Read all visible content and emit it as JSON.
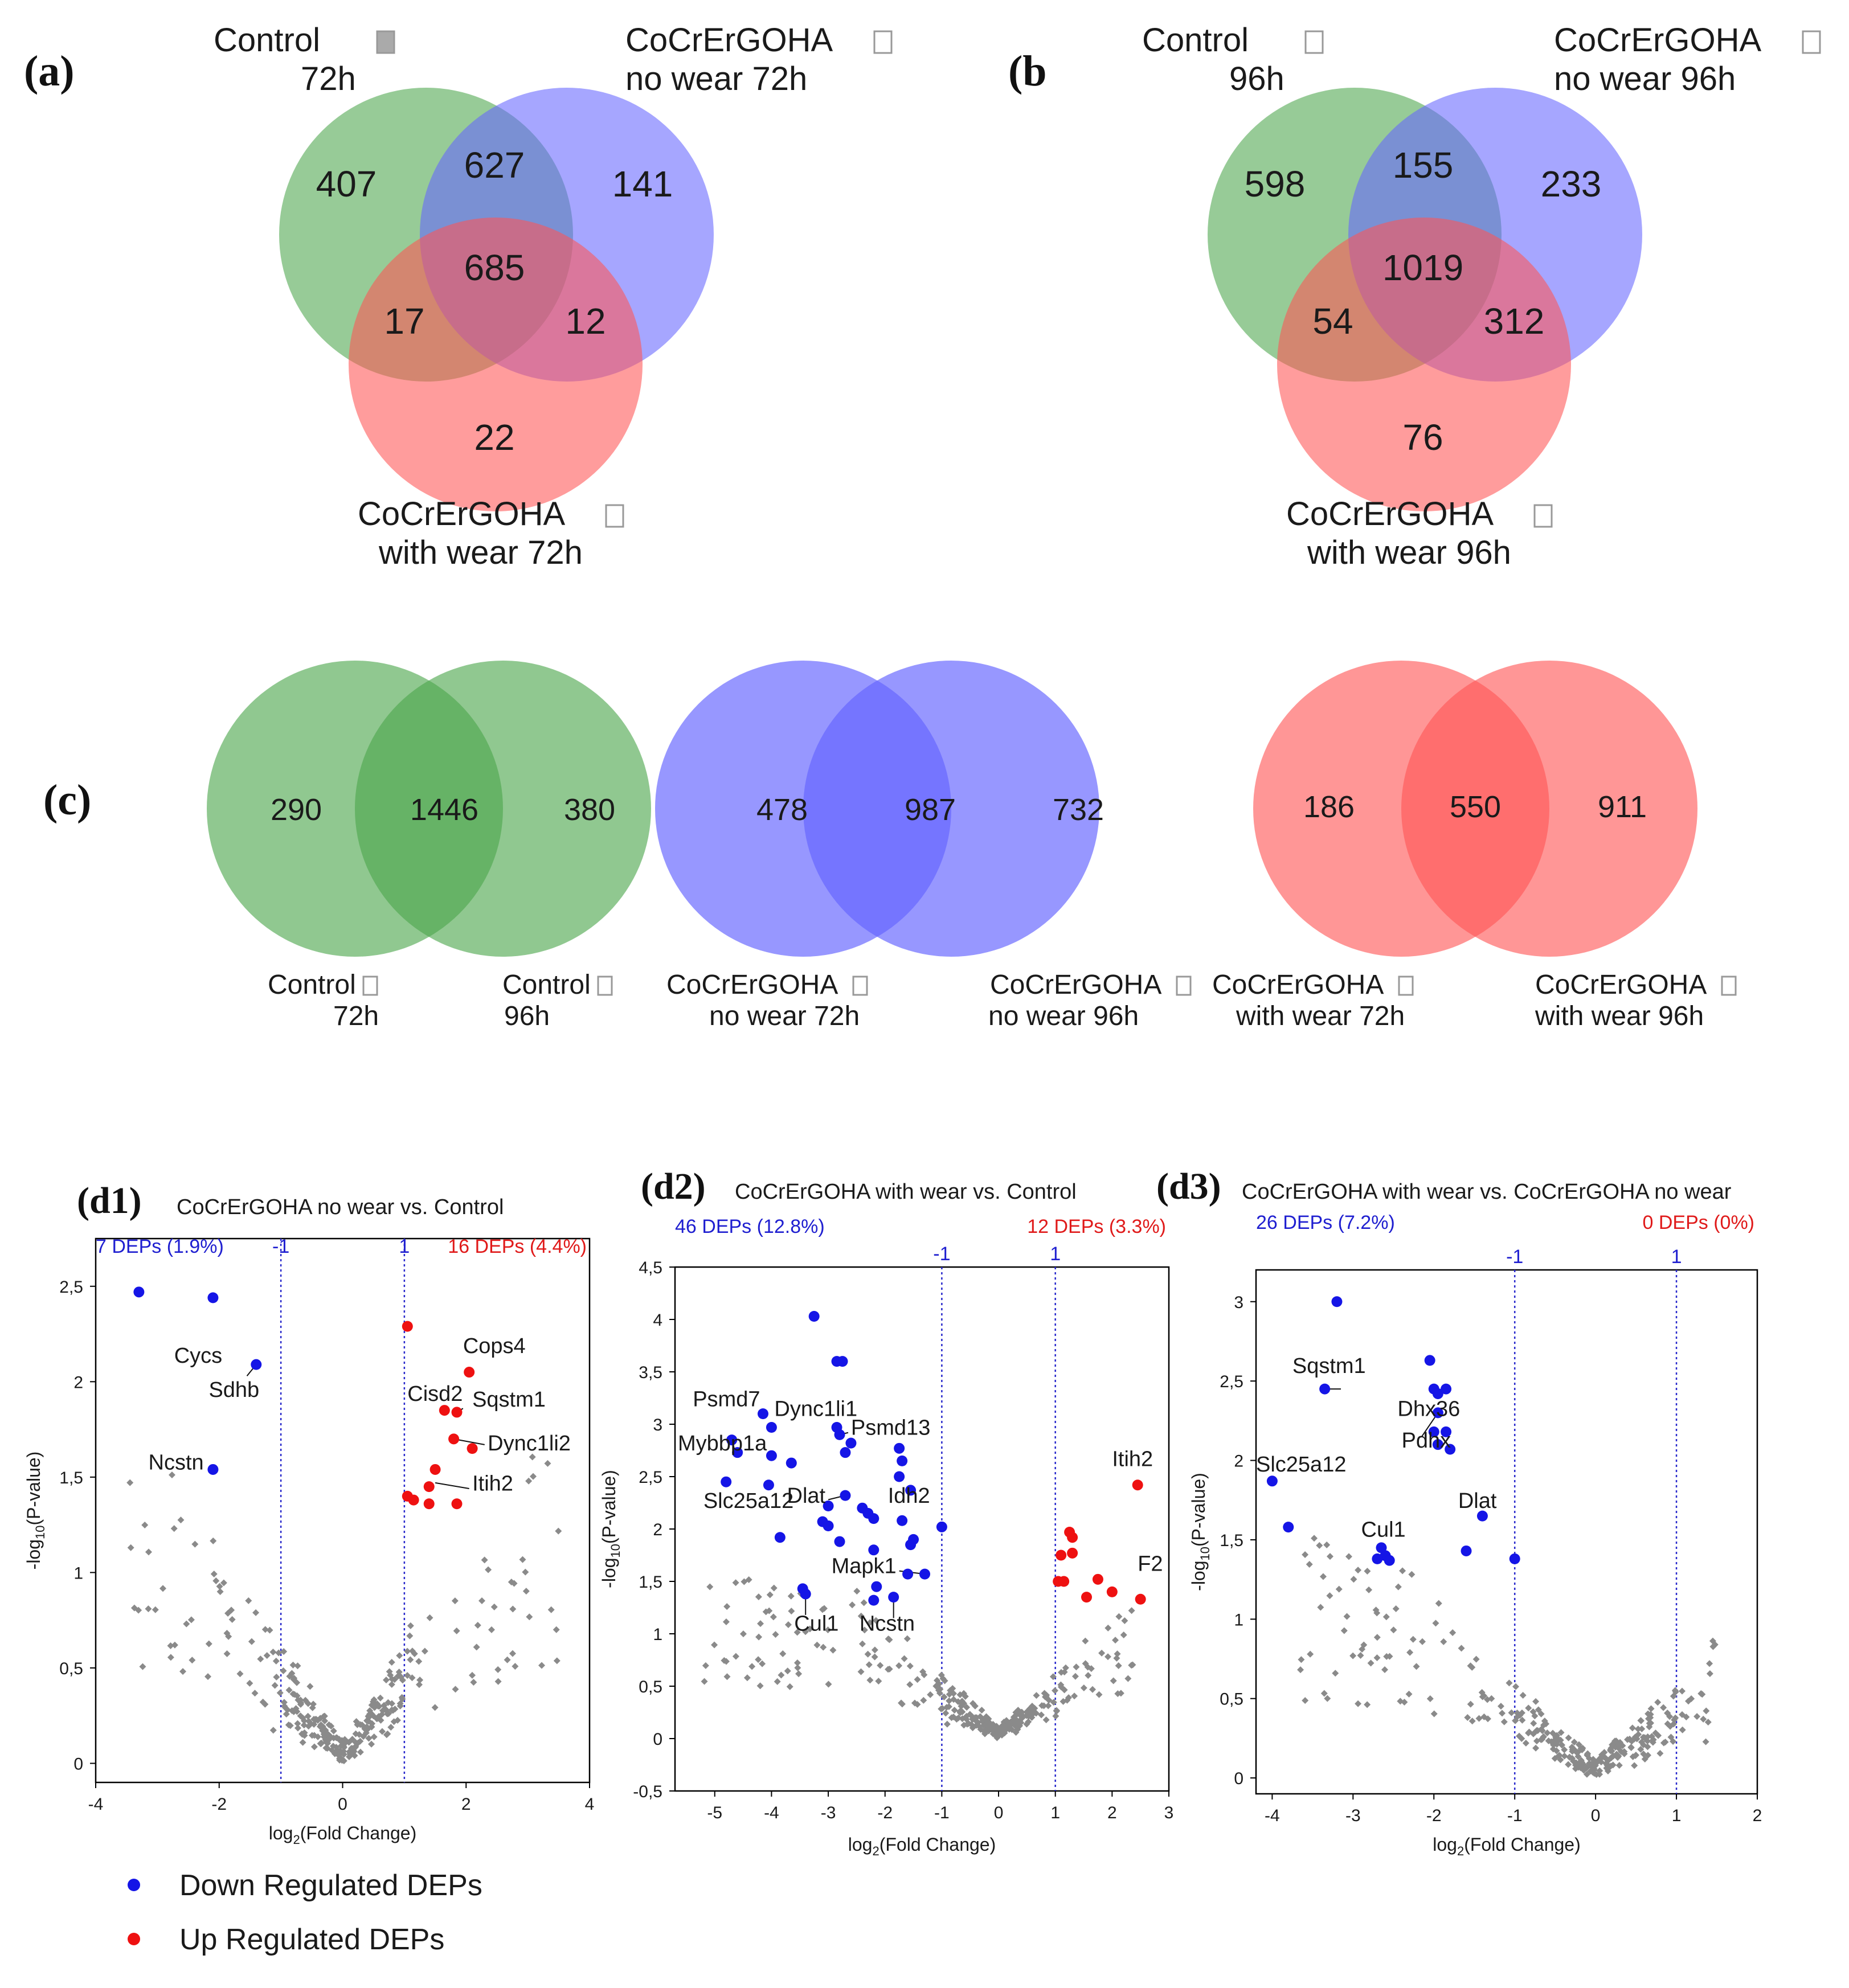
{
  "panels": {
    "a": "(a)",
    "b": "(b",
    "c": "(c)",
    "d1": "(d1)",
    "d2": "(d2)",
    "d3": "(d3)"
  },
  "colors": {
    "control": "#4ca64c",
    "no_wear": "#6666ff",
    "with_wear": "#ff5555",
    "down": "#1515e6",
    "up": "#ee1111",
    "neutral": "#8a8a8a",
    "annot_down": "#1f1fd0",
    "annot_up": "#e01a1a"
  },
  "venn_a": {
    "label_control_1": "Control",
    "label_control_2": "72h",
    "label_nowear_1": "CoCrErGOHA",
    "label_nowear_2": "no wear 72h",
    "label_withwear_1": "CoCrErGOHA",
    "label_withwear_2": "with wear 72h",
    "control_only": "407",
    "control_nowear": "627",
    "nowear_only": "141",
    "all_three": "685",
    "control_withwear": "17",
    "nowear_withwear": "12",
    "withwear_only": "22"
  },
  "venn_b": {
    "label_control_1": "Control",
    "label_control_2": "96h",
    "label_nowear_1": "CoCrErGOHA",
    "label_nowear_2": "no wear 96h",
    "label_withwear_1": "CoCrErGOHA",
    "label_withwear_2": "with wear 96h",
    "control_only": "598",
    "control_nowear": "155",
    "nowear_only": "233",
    "all_three": "1019",
    "control_withwear": "54",
    "nowear_withwear": "312",
    "withwear_only": "76"
  },
  "venn_c": [
    {
      "left": "290",
      "both": "1446",
      "right": "380",
      "left_label_1": "Control",
      "left_label_2": "72h",
      "right_label_1": "Control",
      "right_label_2": "96h"
    },
    {
      "left": "478",
      "both": "987",
      "right": "732",
      "left_label_1": "CoCrErGOHA",
      "left_label_2": "no wear 72h",
      "right_label_1": "CoCrErGOHA",
      "right_label_2": "no wear 96h"
    },
    {
      "left": "186",
      "both": "550",
      "right": "911",
      "left_label_1": "CoCrErGOHA",
      "left_label_2": "with wear 72h",
      "right_label_1": "CoCrErGOHA",
      "right_label_2": "with wear 96h"
    }
  ],
  "legend": {
    "down": "Down Regulated DEPs",
    "up": "Up Regulated DEPs"
  },
  "chart_data": [
    {
      "type": "scatter",
      "id": "d1",
      "title": "CoCrErGOHA no wear vs. Control",
      "xlabel": "log2(Fold Change)",
      "ylabel": "-log10(P-value)",
      "xlim": [
        -4,
        4
      ],
      "ylim": [
        -0.1,
        2.75
      ],
      "xticks": [
        -4,
        -2,
        0,
        2,
        4
      ],
      "xtick_labels": [
        "-4",
        "-2",
        "0",
        "2",
        "4"
      ],
      "yticks": [
        0,
        0.5,
        1,
        1.5,
        2,
        2.5
      ],
      "ytick_labels": [
        "0",
        "0,5",
        "1",
        "1,5",
        "2",
        "2,5"
      ],
      "thresholds": [
        -1,
        1
      ],
      "threshold_labels": [
        "-1",
        "1"
      ],
      "annotation_down": "7 DEPs (1.9%)",
      "annotation_up": "16 DEPs (4.4%)",
      "down_points": [
        [
          -3.3,
          2.47
        ],
        [
          -2.1,
          2.44
        ],
        [
          -1.4,
          2.09
        ],
        [
          -2.1,
          1.54
        ]
      ],
      "up_points": [
        [
          1.05,
          2.29
        ],
        [
          2.05,
          2.05
        ],
        [
          1.65,
          1.85
        ],
        [
          1.85,
          1.84
        ],
        [
          1.8,
          1.7
        ],
        [
          2.1,
          1.65
        ],
        [
          1.5,
          1.54
        ],
        [
          1.4,
          1.45
        ],
        [
          1.05,
          1.4
        ],
        [
          1.15,
          1.38
        ],
        [
          1.4,
          1.36
        ],
        [
          1.85,
          1.36
        ]
      ],
      "labels": [
        {
          "text": "Cycs",
          "x": -1.95,
          "y": 2.1,
          "anchor": "end"
        },
        {
          "text": "Sdhb",
          "x": -1.35,
          "y": 1.92,
          "anchor": "end"
        },
        {
          "text": "Ncstn",
          "x": -2.25,
          "y": 1.54,
          "anchor": "end"
        },
        {
          "text": "Cops4",
          "x": 1.95,
          "y": 2.15,
          "anchor": "start"
        },
        {
          "text": "Cisd2",
          "x": 1.05,
          "y": 1.9,
          "anchor": "start"
        },
        {
          "text": "Sqstm1",
          "x": 2.1,
          "y": 1.87,
          "anchor": "start"
        },
        {
          "text": "Dync1li2",
          "x": 2.35,
          "y": 1.64,
          "anchor": "start"
        },
        {
          "text": "Itih2",
          "x": 2.1,
          "y": 1.43,
          "anchor": "start"
        }
      ],
      "leaders": [
        [
          [
            -1.55,
            2.03
          ],
          [
            -1.4,
            2.09
          ]
        ],
        [
          [
            1.95,
            1.86
          ],
          [
            1.85,
            1.84
          ]
        ],
        [
          [
            2.3,
            1.67
          ],
          [
            1.8,
            1.7
          ]
        ],
        [
          [
            2.05,
            1.44
          ],
          [
            1.5,
            1.47
          ]
        ]
      ]
    },
    {
      "type": "scatter",
      "id": "d2",
      "title": "CoCrErGOHA with wear vs. Control",
      "xlabel": "log2(Fold Change)",
      "ylabel": "-log10(P-value)",
      "xlim": [
        -5.7,
        3
      ],
      "ylim": [
        -0.5,
        4.5
      ],
      "xticks": [
        -5,
        -4,
        -3,
        -2,
        -1,
        0,
        1,
        2,
        3
      ],
      "xtick_labels": [
        "-5",
        "-4",
        "-3",
        "-2",
        "-1",
        "0",
        "1",
        "2",
        "3"
      ],
      "yticks": [
        -0.5,
        0,
        0.5,
        1,
        1.5,
        2,
        2.5,
        3,
        3.5,
        4,
        4.5
      ],
      "ytick_labels": [
        "-0,5",
        "0",
        "0,5",
        "1",
        "1,5",
        "2",
        "2,5",
        "3",
        "3,5",
        "4",
        "4,5"
      ],
      "thresholds": [
        -1,
        1
      ],
      "threshold_labels": [
        "-1",
        "1"
      ],
      "annotation_down": "46 DEPs (12.8%)",
      "annotation_up": "12 DEPs (3.3%)",
      "down_points": [
        [
          -3.25,
          4.03
        ],
        [
          -2.85,
          3.6
        ],
        [
          -2.75,
          3.6
        ],
        [
          -4.15,
          3.1
        ],
        [
          -4.0,
          2.97
        ],
        [
          -2.85,
          2.97
        ],
        [
          -2.8,
          2.9
        ],
        [
          -2.7,
          2.73
        ],
        [
          -4.7,
          2.85
        ],
        [
          -4.6,
          2.73
        ],
        [
          -4.0,
          2.7
        ],
        [
          -3.65,
          2.63
        ],
        [
          -2.6,
          2.82
        ],
        [
          -2.7,
          2.32
        ],
        [
          -1.75,
          2.77
        ],
        [
          -1.7,
          2.65
        ],
        [
          -1.75,
          2.5
        ],
        [
          -1.55,
          2.37
        ],
        [
          -4.8,
          2.45
        ],
        [
          -4.05,
          2.42
        ],
        [
          -3.0,
          2.22
        ],
        [
          -2.4,
          2.2
        ],
        [
          -2.3,
          2.15
        ],
        [
          -2.2,
          2.1
        ],
        [
          -3.1,
          2.07
        ],
        [
          -3.0,
          2.03
        ],
        [
          -1.7,
          2.08
        ],
        [
          -1.0,
          2.02
        ],
        [
          -3.85,
          1.92
        ],
        [
          -1.5,
          1.9
        ],
        [
          -1.55,
          1.85
        ],
        [
          -2.8,
          1.88
        ],
        [
          -3.45,
          1.43
        ],
        [
          -3.4,
          1.38
        ],
        [
          -2.2,
          1.8
        ],
        [
          -1.3,
          1.57
        ],
        [
          -1.6,
          1.57
        ],
        [
          -2.15,
          1.45
        ],
        [
          -2.2,
          1.32
        ],
        [
          -1.85,
          1.35
        ]
      ],
      "up_points": [
        [
          2.45,
          2.42
        ],
        [
          1.25,
          1.97
        ],
        [
          1.3,
          1.92
        ],
        [
          1.1,
          1.75
        ],
        [
          1.3,
          1.77
        ],
        [
          1.05,
          1.5
        ],
        [
          1.15,
          1.5
        ],
        [
          1.75,
          1.52
        ],
        [
          2.0,
          1.4
        ],
        [
          1.55,
          1.35
        ],
        [
          2.5,
          1.33
        ]
      ],
      "labels": [
        {
          "text": "Psmd7",
          "x": -4.2,
          "y": 3.17,
          "anchor": "end"
        },
        {
          "text": "Dync1li1",
          "x": -3.95,
          "y": 3.08,
          "anchor": "start"
        },
        {
          "text": "Psmd13",
          "x": -2.6,
          "y": 2.9,
          "anchor": "start"
        },
        {
          "text": "Mybbp1a",
          "x": -5.65,
          "y": 2.75,
          "anchor": "start"
        },
        {
          "text": "Slc25a12",
          "x": -5.2,
          "y": 2.2,
          "anchor": "start"
        },
        {
          "text": "Dlat",
          "x": -3.05,
          "y": 2.25,
          "anchor": "end"
        },
        {
          "text": "Idh2",
          "x": -1.95,
          "y": 2.25,
          "anchor": "start"
        },
        {
          "text": "Mapk1",
          "x": -1.8,
          "y": 1.58,
          "anchor": "end"
        },
        {
          "text": "Cul1",
          "x": -3.6,
          "y": 1.03,
          "anchor": "start"
        },
        {
          "text": "Ncstn",
          "x": -2.45,
          "y": 1.03,
          "anchor": "start"
        },
        {
          "text": "Itih2",
          "x": 2.0,
          "y": 2.6,
          "anchor": "start"
        },
        {
          "text": "F2",
          "x": 2.45,
          "y": 1.6,
          "anchor": "start"
        }
      ],
      "leaders": [
        [
          [
            -4.2,
            3.07
          ],
          [
            -4.1,
            3.1
          ]
        ],
        [
          [
            -2.65,
            2.92
          ],
          [
            -2.8,
            2.9
          ]
        ],
        [
          [
            -3.0,
            2.28
          ],
          [
            -2.7,
            2.32
          ]
        ],
        [
          [
            -1.75,
            1.6
          ],
          [
            -1.3,
            1.57
          ]
        ],
        [
          [
            -3.4,
            1.18
          ],
          [
            -3.4,
            1.38
          ]
        ],
        [
          [
            -1.85,
            1.15
          ],
          [
            -1.85,
            1.35
          ]
        ]
      ]
    },
    {
      "type": "scatter",
      "id": "d3",
      "title": "CoCrErGOHA with wear vs. CoCrErGOHA no wear",
      "xlabel": "log2(Fold Change)",
      "ylabel": "-log10(P-value)",
      "xlim": [
        -4.2,
        2
      ],
      "ylim": [
        -0.1,
        3.2
      ],
      "xticks": [
        -4,
        -3,
        -2,
        -1,
        0,
        1,
        2
      ],
      "xtick_labels": [
        "-4",
        "-3",
        "-2",
        "-1",
        "0",
        "1",
        "2"
      ],
      "yticks": [
        0,
        0.5,
        1,
        1.5,
        2,
        2.5,
        3
      ],
      "ytick_labels": [
        "0",
        "0,5",
        "1",
        "1,5",
        "2",
        "2,5",
        "3"
      ],
      "thresholds": [
        -1,
        1
      ],
      "threshold_labels": [
        "-1",
        "1"
      ],
      "annotation_down": "26 DEPs (7.2%)",
      "annotation_up": "0 DEPs (0%)",
      "down_points": [
        [
          -3.2,
          3.0
        ],
        [
          -2.05,
          2.63
        ],
        [
          -3.35,
          2.45
        ],
        [
          -2.0,
          2.45
        ],
        [
          -1.95,
          2.42
        ],
        [
          -1.85,
          2.45
        ],
        [
          -1.95,
          2.3
        ],
        [
          -1.85,
          2.18
        ],
        [
          -2.0,
          2.18
        ],
        [
          -1.95,
          2.1
        ],
        [
          -1.8,
          2.07
        ],
        [
          -4.0,
          1.87
        ],
        [
          -1.4,
          1.65
        ],
        [
          -3.8,
          1.58
        ],
        [
          -2.65,
          1.45
        ],
        [
          -2.6,
          1.4
        ],
        [
          -2.7,
          1.38
        ],
        [
          -2.55,
          1.37
        ],
        [
          -1.6,
          1.43
        ],
        [
          -1.0,
          1.38
        ]
      ],
      "up_points": [],
      "labels": [
        {
          "text": "Sqstm1",
          "x": -3.75,
          "y": 2.55,
          "anchor": "start"
        },
        {
          "text": "Dhx36",
          "x": -2.45,
          "y": 2.28,
          "anchor": "start"
        },
        {
          "text": "Pdhx",
          "x": -2.4,
          "y": 2.08,
          "anchor": "start"
        },
        {
          "text": "Slc25a12",
          "x": -4.2,
          "y": 1.93,
          "anchor": "start"
        },
        {
          "text": "Dlat",
          "x": -1.7,
          "y": 1.7,
          "anchor": "start"
        },
        {
          "text": "Cul1",
          "x": -2.9,
          "y": 1.52,
          "anchor": "start"
        }
      ],
      "leaders": [
        [
          [
            -2.15,
            2.15
          ],
          [
            -1.95,
            2.3
          ]
        ],
        [
          [
            -3.15,
            2.45
          ],
          [
            -3.35,
            2.45
          ]
        ],
        [
          [
            -2.62,
            1.48
          ],
          [
            -2.65,
            1.45
          ]
        ]
      ]
    }
  ]
}
